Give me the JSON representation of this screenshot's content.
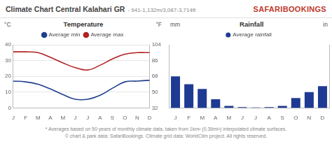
{
  "header": {
    "title": "Climate Chart Central Kalahari GR",
    "subtitle": "- 941-1,132m/3,087-3,714ft",
    "logo": "SAFARIBOOKINGS"
  },
  "chart_data": [
    {
      "type": "line",
      "title": "Temperature",
      "y_label": "°C",
      "y2_label": "°F",
      "categories": [
        "J",
        "F",
        "M",
        "A",
        "M",
        "J",
        "J",
        "A",
        "S",
        "O",
        "N",
        "D"
      ],
      "series": [
        {
          "name": "Average min",
          "color": "#1f3f8f",
          "values": [
            17,
            16.5,
            15,
            12,
            8.5,
            5.5,
            5.5,
            8,
            12.5,
            16.5,
            17,
            17.5
          ]
        },
        {
          "name": "Average max",
          "color": "#b22222",
          "values": [
            35.5,
            35.5,
            35,
            32,
            28.5,
            25.5,
            24,
            27,
            31,
            34,
            35,
            35
          ]
        }
      ],
      "ylim": [
        0,
        40
      ],
      "yticks": [
        0,
        10,
        20,
        30,
        40
      ],
      "y2lim": [
        32,
        104
      ],
      "y2ticks": [
        32,
        50,
        68,
        86,
        104
      ],
      "grid": true,
      "legend": "top"
    },
    {
      "type": "bar",
      "title": "Rainfall",
      "y_label": "mm",
      "y2_label": "in",
      "categories": [
        "J",
        "F",
        "M",
        "A",
        "M",
        "J",
        "J",
        "A",
        "S",
        "O",
        "N",
        "D"
      ],
      "series": [
        {
          "name": "Average rainfall",
          "color": "#1f3a93",
          "values": [
            80,
            60,
            48,
            22,
            5,
            2,
            1,
            2,
            5,
            25,
            40,
            55
          ]
        }
      ],
      "ylim": [
        0,
        160
      ],
      "y2lim": [
        0,
        6.3
      ],
      "grid": false,
      "legend": "top",
      "tick_labels": "x"
    }
  ],
  "footer": [
    "* Averages based on 50 years of monthly climate data, taken from 1km² (0.39mi²) interpolated climate surfaces.",
    "© chart & park data: SafariBookings. Climate grid data: WorldClim project. All rights reserved."
  ]
}
